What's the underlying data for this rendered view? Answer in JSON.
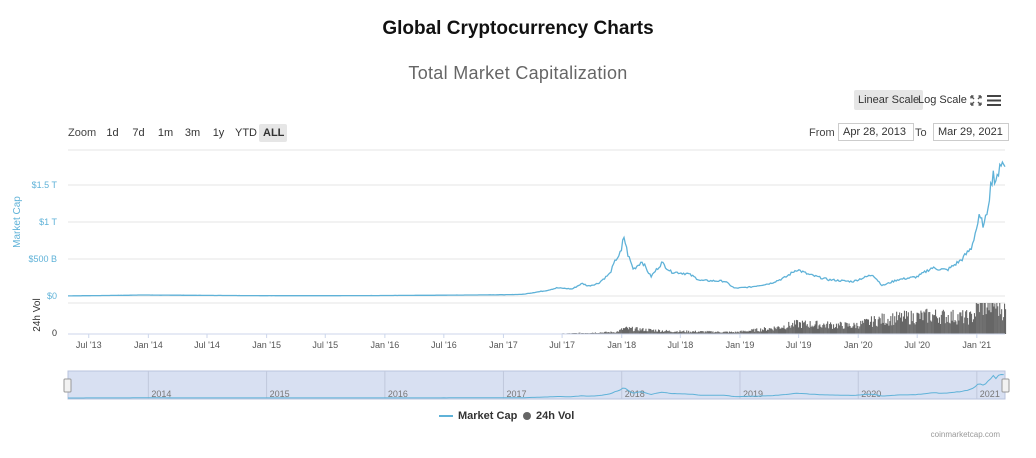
{
  "page": {
    "heading": "Global Cryptocurrency Charts"
  },
  "toolbar": {
    "linear_scale": "Linear Scale",
    "log_scale": "Log Scale",
    "fullscreen_icon": "expand-icon",
    "menu_icon": "hamburger-menu-icon"
  },
  "range_selector": {
    "zoom_label": "Zoom",
    "buttons": [
      "1d",
      "7d",
      "1m",
      "3m",
      "1y",
      "YTD",
      "ALL"
    ],
    "active": "ALL",
    "from_label": "From",
    "from_value": "Apr 28, 2013",
    "to_label": "To",
    "to_value": "Mar 29, 2021"
  },
  "colors": {
    "market_cap": "#5fb2d8",
    "volume": "#666666",
    "navigator_mask": "#d8e0f2"
  },
  "chart_data": {
    "type": "area",
    "title": "Total Market Capitalization",
    "x_tick_labels": [
      "Jul '13",
      "Jan '14",
      "Jul '14",
      "Jan '15",
      "Jul '15",
      "Jan '16",
      "Jul '16",
      "Jan '17",
      "Jul '17",
      "Jan '18",
      "Jul '18",
      "Jan '19",
      "Jul '19",
      "Jan '20",
      "Jul '20",
      "Jan '21"
    ],
    "x_range": [
      "2013-04-28",
      "2021-03-29"
    ],
    "series": [
      {
        "name": "Market Cap",
        "ylabel": "Market Cap",
        "y_tick_labels": [
          "$0",
          "$500 B",
          "$1 T",
          "$1.5 T"
        ],
        "y_ticks": [
          0,
          500,
          1000,
          1500
        ],
        "units": "billions USD",
        "points": [
          [
            "2013-04-28",
            1.5
          ],
          [
            "2013-11-01",
            10
          ],
          [
            "2013-12-05",
            14
          ],
          [
            "2014-02-01",
            12
          ],
          [
            "2014-06-01",
            9
          ],
          [
            "2014-12-01",
            5
          ],
          [
            "2015-06-01",
            4
          ],
          [
            "2015-12-01",
            6
          ],
          [
            "2016-06-01",
            10
          ],
          [
            "2016-12-31",
            17
          ],
          [
            "2017-03-01",
            22
          ],
          [
            "2017-05-15",
            75
          ],
          [
            "2017-06-15",
            110
          ],
          [
            "2017-08-01",
            95
          ],
          [
            "2017-09-01",
            170
          ],
          [
            "2017-09-20",
            135
          ],
          [
            "2017-10-20",
            170
          ],
          [
            "2017-11-25",
            300
          ],
          [
            "2017-12-15",
            500
          ],
          [
            "2017-12-31",
            600
          ],
          [
            "2018-01-07",
            820
          ],
          [
            "2018-01-20",
            560
          ],
          [
            "2018-02-06",
            360
          ],
          [
            "2018-03-05",
            470
          ],
          [
            "2018-04-01",
            260
          ],
          [
            "2018-05-05",
            450
          ],
          [
            "2018-06-01",
            330
          ],
          [
            "2018-07-25",
            300
          ],
          [
            "2018-09-01",
            210
          ],
          [
            "2018-11-15",
            200
          ],
          [
            "2018-12-15",
            105
          ],
          [
            "2019-02-01",
            120
          ],
          [
            "2019-04-05",
            170
          ],
          [
            "2019-05-20",
            250
          ],
          [
            "2019-06-26",
            360
          ],
          [
            "2019-08-01",
            290
          ],
          [
            "2019-10-01",
            220
          ],
          [
            "2019-12-15",
            195
          ],
          [
            "2020-02-15",
            290
          ],
          [
            "2020-03-15",
            140
          ],
          [
            "2020-05-01",
            220
          ],
          [
            "2020-07-01",
            260
          ],
          [
            "2020-08-15",
            380
          ],
          [
            "2020-10-01",
            350
          ],
          [
            "2020-11-15",
            490
          ],
          [
            "2020-12-15",
            650
          ],
          [
            "2021-01-08",
            1050
          ],
          [
            "2021-01-25",
            950
          ],
          [
            "2021-02-21",
            1700
          ],
          [
            "2021-02-28",
            1450
          ],
          [
            "2021-03-13",
            1820
          ],
          [
            "2021-03-29",
            1750
          ]
        ]
      },
      {
        "name": "24h Vol",
        "ylabel": "24h Vol",
        "y_tick_labels": [
          "0"
        ],
        "units": "billions USD",
        "points": [
          [
            "2013-04-28",
            0.1
          ],
          [
            "2016-12-31",
            0.3
          ],
          [
            "2017-06-01",
            2
          ],
          [
            "2017-12-15",
            22
          ],
          [
            "2018-01-07",
            60
          ],
          [
            "2018-06-01",
            30
          ],
          [
            "2018-12-15",
            20
          ],
          [
            "2019-04-05",
            60
          ],
          [
            "2019-06-26",
            110
          ],
          [
            "2019-12-15",
            90
          ],
          [
            "2020-02-15",
            140
          ],
          [
            "2020-03-15",
            160
          ],
          [
            "2020-08-15",
            200
          ],
          [
            "2020-12-15",
            180
          ],
          [
            "2021-01-08",
            320
          ],
          [
            "2021-02-21",
            330
          ],
          [
            "2021-03-29",
            250
          ]
        ]
      }
    ],
    "navigator": {
      "year_labels": [
        "2014",
        "2015",
        "2016",
        "2017",
        "2018",
        "2019",
        "2020",
        "2021"
      ]
    },
    "legend": {
      "placement": "bottom-center"
    },
    "grid": true,
    "credits": "coinmarketcap.com"
  }
}
